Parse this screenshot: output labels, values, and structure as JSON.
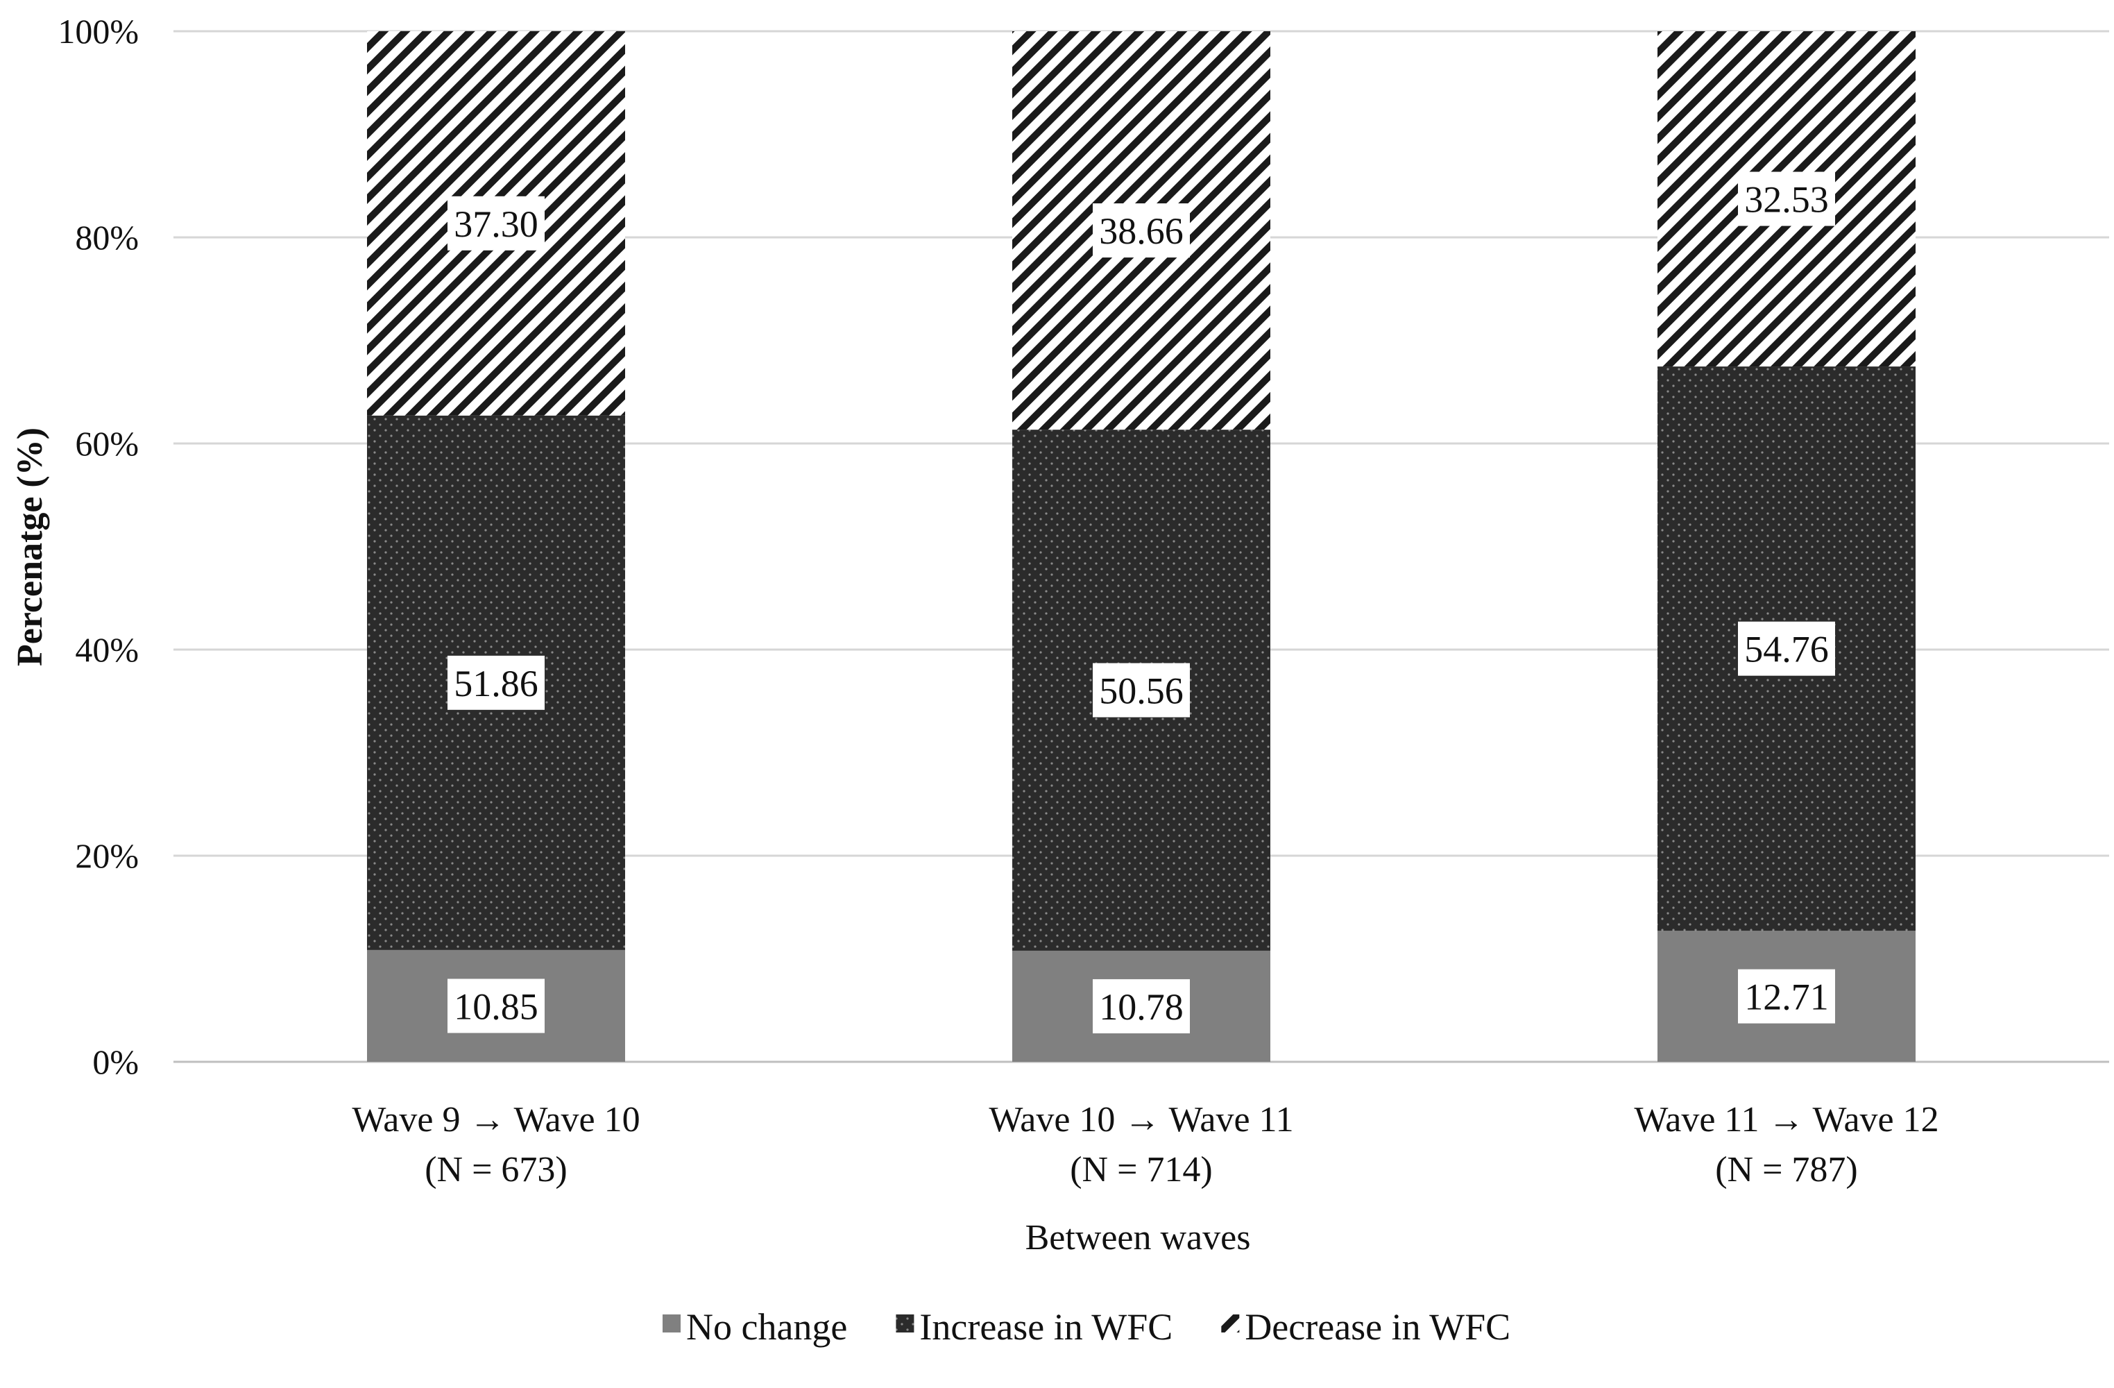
{
  "chart_data": {
    "type": "bar",
    "stacked": true,
    "categories": [
      [
        "Wave 9  → Wave 10",
        "(N = 673)"
      ],
      [
        "Wave 10  → Wave 11",
        "(N = 714)"
      ],
      [
        "Wave 11  → Wave 12",
        "(N = 787)"
      ]
    ],
    "series": [
      {
        "name": "No change",
        "values": [
          10.85,
          10.78,
          12.71
        ],
        "labels": [
          "10.85",
          "10.78",
          "12.71"
        ],
        "color": "#808080",
        "pattern": "solid"
      },
      {
        "name": "Increase in WFC",
        "values": [
          51.86,
          50.56,
          54.76
        ],
        "labels": [
          "51.86",
          "50.56",
          "54.76"
        ],
        "color": "#2b2b2b",
        "pattern": "dotted"
      },
      {
        "name": "Decrease in WFC",
        "values": [
          37.3,
          38.66,
          32.53
        ],
        "labels": [
          "37.30",
          "38.66",
          "32.53"
        ],
        "color": "#1a1a1a",
        "pattern": "diagonal-hatch"
      }
    ],
    "xlabel": "Between waves",
    "ylabel": "Percenatge (%)",
    "ylim": [
      0,
      100
    ],
    "yticks": [
      "0%",
      "20%",
      "40%",
      "60%",
      "80%",
      "100%"
    ],
    "grid": true,
    "legend_position": "bottom"
  }
}
